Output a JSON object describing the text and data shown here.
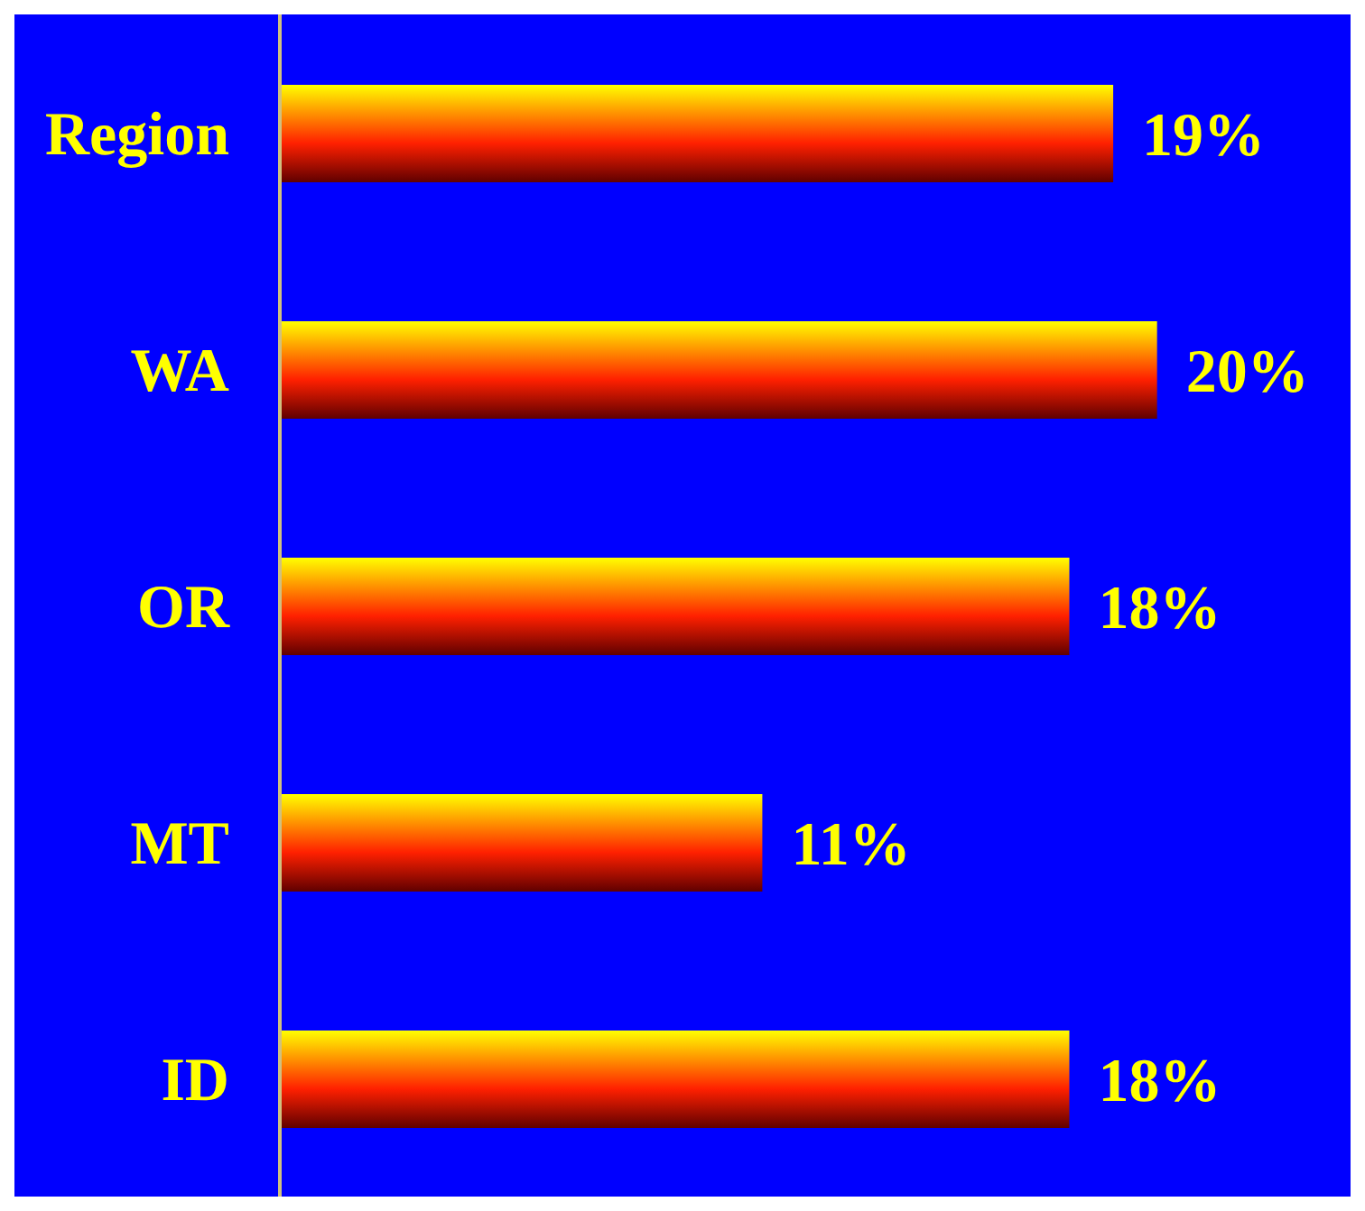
{
  "chart_data": {
    "type": "bar",
    "orientation": "horizontal",
    "categories": [
      "Region",
      "WA",
      "OR",
      "MT",
      "ID"
    ],
    "values": [
      19,
      20,
      18,
      11,
      18
    ],
    "value_labels": [
      "19%",
      "20%",
      "18%",
      "11%",
      "18%"
    ],
    "color": "#ff2000",
    "grid": false
  }
}
